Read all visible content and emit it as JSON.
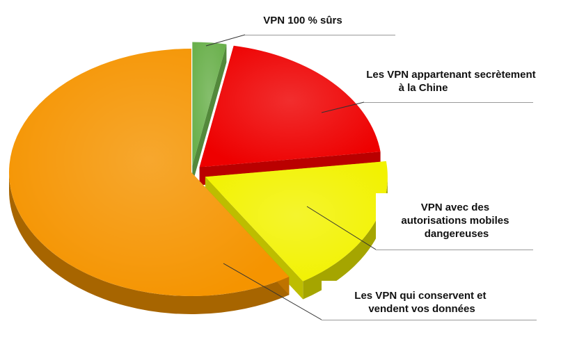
{
  "chart_data": {
    "type": "pie",
    "style": "3d-exploded",
    "title": "",
    "slices": [
      {
        "key": "safe",
        "label": "VPN 100 % sûrs",
        "value": 3,
        "color": "#6ab04c"
      },
      {
        "key": "china",
        "label": "Les VPN appartenant secrètement à la Chine",
        "value": 20,
        "color": "#ee0000"
      },
      {
        "key": "permissions",
        "label": "VPN avec des autorisations mobiles dangereuses",
        "value": 18,
        "color": "#f2f200"
      },
      {
        "key": "sell",
        "label": "Les VPN qui conservent et vendent vos données",
        "value": 59,
        "color": "#f59400"
      }
    ]
  },
  "labels": {
    "safe": [
      "VPN 100 % sûrs"
    ],
    "china": [
      "Les VPN appartenant secrètement",
      "à la Chine"
    ],
    "permissions": [
      "VPN avec des",
      "autorisations mobiles",
      "dangereuses"
    ],
    "sell": [
      "Les VPN qui conservent et",
      "vendent vos données"
    ]
  }
}
